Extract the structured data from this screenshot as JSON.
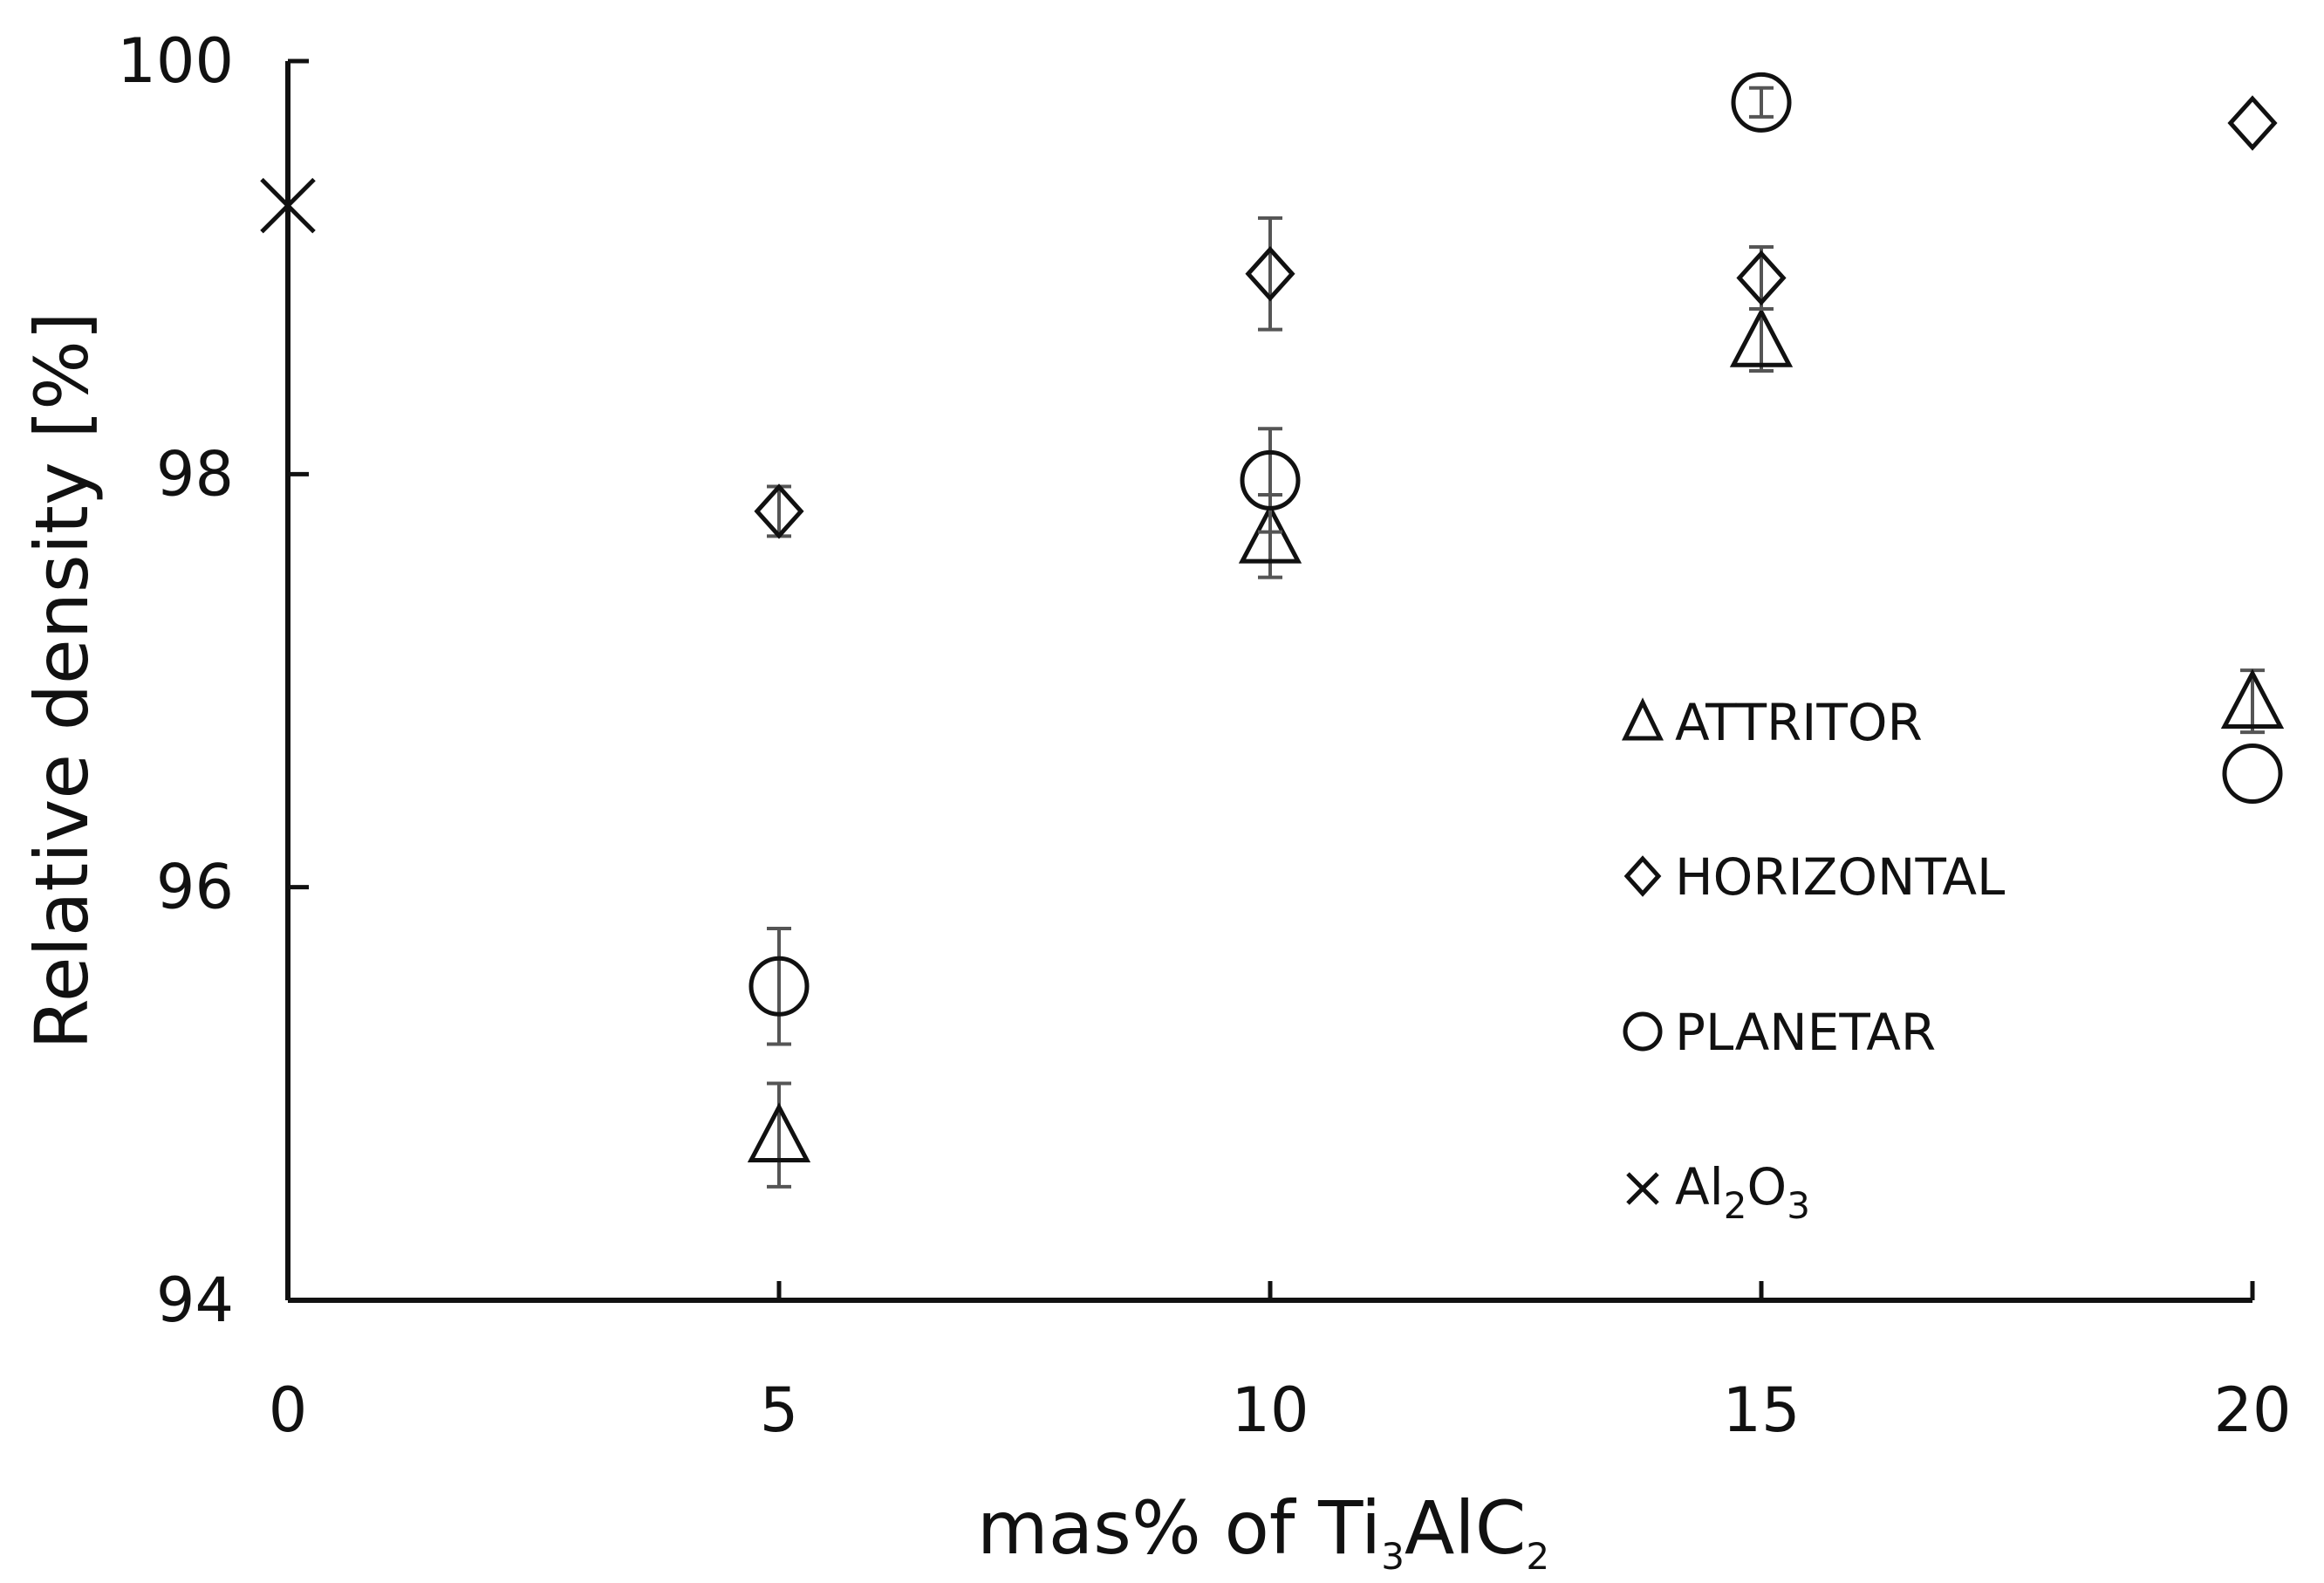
{
  "chart_data": {
    "type": "scatter",
    "xlabel": {
      "main": "mas% of Ti",
      "sub1": "3",
      "mid": "AlC",
      "sub2": "2"
    },
    "ylabel": "Relative density [%]",
    "xlim": [
      0,
      20
    ],
    "ylim": [
      94,
      100
    ],
    "x_ticks": [
      0,
      5,
      10,
      15,
      20
    ],
    "y_ticks": [
      94,
      96,
      98,
      100
    ],
    "x_tick_labels": [
      "0",
      "5",
      "10",
      "15",
      "20"
    ],
    "y_tick_labels": [
      "94",
      "96",
      "98",
      "100"
    ],
    "grid": false,
    "legend_position": "right",
    "series": [
      {
        "name": "ATTRITOR",
        "marker": "triangle",
        "points": [
          {
            "x": 5,
            "y": 94.8,
            "err": 0.25
          },
          {
            "x": 10,
            "y": 97.7,
            "err": 0.2
          },
          {
            "x": 15,
            "y": 98.65,
            "err": 0.15
          },
          {
            "x": 20,
            "y": 96.9,
            "err": 0.15
          }
        ]
      },
      {
        "name": "HORIZONTAL",
        "marker": "diamond",
        "points": [
          {
            "x": 5,
            "y": 97.82,
            "err": 0.12
          },
          {
            "x": 10,
            "y": 98.97,
            "err": 0.27
          },
          {
            "x": 15,
            "y": 98.95,
            "err": 0.15
          },
          {
            "x": 20,
            "y": 99.7,
            "err": 0
          }
        ]
      },
      {
        "name": "PLANETAR",
        "marker": "circle",
        "points": [
          {
            "x": 5,
            "y": 95.52,
            "err": 0.28
          },
          {
            "x": 10,
            "y": 97.97,
            "err": 0.25
          },
          {
            "x": 15,
            "y": 99.8,
            "err": 0.07
          },
          {
            "x": 20,
            "y": 96.55,
            "err": 0
          }
        ]
      },
      {
        "name": "Al2O3",
        "label": {
          "pre": "Al",
          "sub1": "2",
          "mid": "O",
          "sub2": "3"
        },
        "marker": "cross",
        "points": [
          {
            "x": 0,
            "y": 99.3,
            "err": 0
          }
        ]
      }
    ]
  }
}
